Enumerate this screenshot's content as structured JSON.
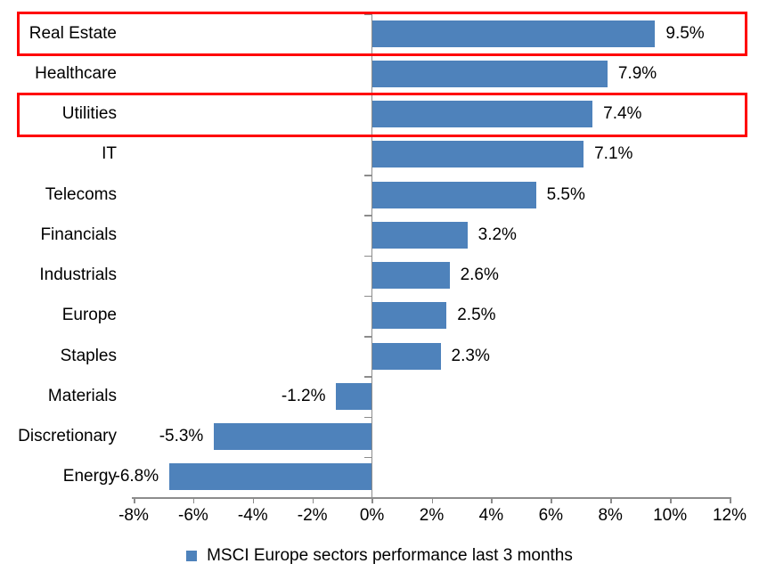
{
  "chart_data": {
    "type": "bar",
    "orientation": "horizontal",
    "title": "",
    "legend": "MSCI Europe sectors performance last 3 months",
    "legend_position": "bottom",
    "categories": [
      "Real Estate",
      "Healthcare",
      "Utilities",
      "IT",
      "Telecoms",
      "Financials",
      "Industrials",
      "Europe",
      "Staples",
      "Materials",
      "Discretionary",
      "Energy"
    ],
    "values": [
      9.5,
      7.9,
      7.4,
      7.1,
      5.5,
      3.2,
      2.6,
      2.5,
      2.3,
      -1.2,
      -5.3,
      -6.8
    ],
    "value_labels": [
      "9.5%",
      "7.9%",
      "7.4%",
      "7.1%",
      "5.5%",
      "3.2%",
      "2.6%",
      "2.5%",
      "2.3%",
      "-1.2%",
      "-5.3%",
      "-6.8%"
    ],
    "xlim": [
      -8,
      12
    ],
    "x_tick_step": 2,
    "x_tick_labels": [
      "-8%",
      "-6%",
      "-4%",
      "-2%",
      "0%",
      "2%",
      "4%",
      "6%",
      "8%",
      "10%",
      "12%"
    ],
    "grid": false,
    "bar_color": "#4e82bb",
    "axis_color": "#8c8c8c",
    "highlight_color": "#ff0000",
    "highlighted_categories": [
      "Real Estate",
      "Utilities"
    ]
  }
}
